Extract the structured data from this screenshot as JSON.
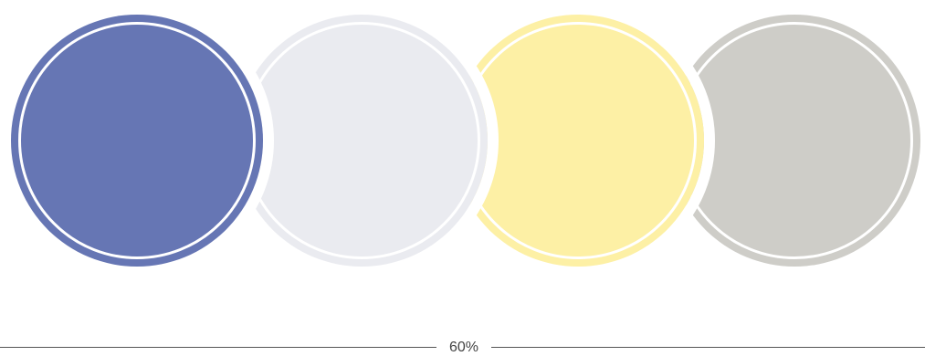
{
  "swatches": [
    {
      "name": "blue",
      "color": "#6676b4"
    },
    {
      "name": "light-gray",
      "color": "#eaebf0"
    },
    {
      "name": "yellow",
      "color": "#fdf0a5"
    },
    {
      "name": "warm-gray",
      "color": "#cecdc8"
    }
  ],
  "scale": {
    "label": "60%"
  }
}
